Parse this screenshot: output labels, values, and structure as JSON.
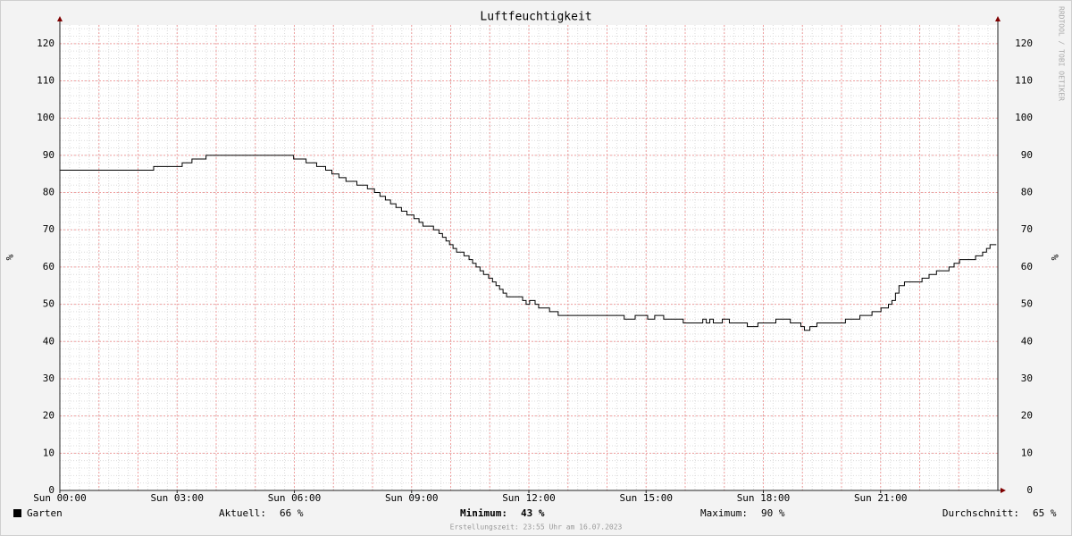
{
  "chart_data": {
    "type": "line",
    "title": "Luftfeuchtigkeit",
    "y_label": "%",
    "y2_label": "%",
    "watermark": "RRDTOOL / TOBI OETIKER",
    "footer": "Erstellungszeit: 23:55 Uhr am 16.07.2023",
    "xlim": [
      0,
      24
    ],
    "xticks": [
      {
        "value": 0,
        "label": "Sun 00:00"
      },
      {
        "value": 3,
        "label": "Sun 03:00"
      },
      {
        "value": 6,
        "label": "Sun 06:00"
      },
      {
        "value": 9,
        "label": "Sun 09:00"
      },
      {
        "value": 12,
        "label": "Sun 12:00"
      },
      {
        "value": 15,
        "label": "Sun 15:00"
      },
      {
        "value": 18,
        "label": "Sun 18:00"
      },
      {
        "value": 21,
        "label": "Sun 21:00"
      }
    ],
    "ylim": [
      0,
      125
    ],
    "yticks": [
      0,
      10,
      20,
      30,
      40,
      50,
      60,
      70,
      80,
      90,
      100,
      110,
      120
    ],
    "grid": true,
    "x_major_grid_step": 1,
    "x_minor_grid_step": 0.25,
    "y_minor_grid_step": 2,
    "step": "post",
    "series": [
      {
        "name": "Garten",
        "color": "#000000",
        "x": [
          0,
          2.4,
          3.13,
          3.38,
          3.74,
          5.98,
          6.3,
          6.57,
          6.8,
          6.96,
          7.14,
          7.32,
          7.6,
          7.87,
          8.05,
          8.19,
          8.33,
          8.46,
          8.6,
          8.74,
          8.88,
          9.06,
          9.19,
          9.29,
          9.56,
          9.7,
          9.79,
          9.88,
          9.97,
          10.06,
          10.15,
          10.34,
          10.47,
          10.56,
          10.65,
          10.75,
          10.84,
          10.97,
          11.07,
          11.16,
          11.25,
          11.34,
          11.43,
          11.84,
          11.93,
          12.02,
          12.16,
          12.25,
          12.53,
          12.75,
          14.44,
          14.72,
          15.04,
          15.22,
          15.45,
          15.95,
          16.45,
          16.54,
          16.63,
          16.72,
          16.95,
          17.13,
          17.59,
          17.86,
          18.32,
          18.69,
          18.96,
          19.05,
          19.19,
          19.37,
          20.1,
          20.47,
          20.78,
          21.01,
          21.2,
          21.29,
          21.38,
          21.47,
          21.61,
          22.06,
          22.24,
          22.43,
          22.75,
          22.88,
          23.02,
          23.43,
          23.61,
          23.71,
          23.8,
          23.96
        ],
        "values": [
          86,
          87,
          88,
          89,
          90,
          89,
          88,
          87,
          86,
          85,
          84,
          83,
          82,
          81,
          80,
          79,
          78,
          77,
          76,
          75,
          74,
          73,
          72,
          71,
          70,
          69,
          68,
          67,
          66,
          65,
          64,
          63,
          62,
          61,
          60,
          59,
          58,
          57,
          56,
          55,
          54,
          53,
          52,
          51,
          50,
          51,
          50,
          49,
          48,
          47,
          46,
          47,
          46,
          47,
          46,
          45,
          46,
          45,
          46,
          45,
          46,
          45,
          44,
          45,
          46,
          45,
          44,
          43,
          44,
          45,
          46,
          47,
          48,
          49,
          50,
          51,
          53,
          55,
          56,
          57,
          58,
          59,
          60,
          61,
          62,
          63,
          64,
          65,
          66,
          66
        ]
      }
    ],
    "stats": [
      {
        "label": "Aktuell:",
        "value": "66 %",
        "bold": false
      },
      {
        "label": "Minimum:",
        "value": "43 %",
        "bold": true
      },
      {
        "label": "Maximum:",
        "value": "90 %",
        "bold": false
      },
      {
        "label": "Durchschnitt:",
        "value": "65 %",
        "bold": false
      }
    ]
  }
}
